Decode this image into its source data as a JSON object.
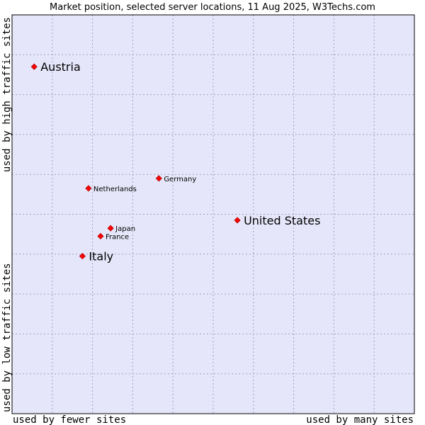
{
  "chart_data": {
    "type": "scatter",
    "title": "Market position, selected server locations, 11 Aug 2025, W3Techs.com",
    "xlabel_left": "used by fewer sites",
    "xlabel_right": "used by many sites",
    "ylabel_bottom": "used by low traffic sites",
    "ylabel_top": "used by high traffic sites",
    "xlim": [
      0,
      100
    ],
    "ylim": [
      0,
      100
    ],
    "grid": true,
    "plot_background": "#e6e6fa",
    "point_color": "#ff0000",
    "points": [
      {
        "label": "Austria",
        "x": 5.5,
        "y": 87.0,
        "emphasis": "large"
      },
      {
        "label": "United States",
        "x": 56.0,
        "y": 48.5,
        "emphasis": "large"
      },
      {
        "label": "Italy",
        "x": 17.5,
        "y": 39.5,
        "emphasis": "large"
      },
      {
        "label": "Germany",
        "x": 36.5,
        "y": 59.0,
        "emphasis": "small"
      },
      {
        "label": "Netherlands",
        "x": 19.0,
        "y": 56.5,
        "emphasis": "small"
      },
      {
        "label": "Japan",
        "x": 24.5,
        "y": 46.5,
        "emphasis": "small"
      },
      {
        "label": "France",
        "x": 22.0,
        "y": 44.5,
        "emphasis": "small"
      }
    ]
  }
}
